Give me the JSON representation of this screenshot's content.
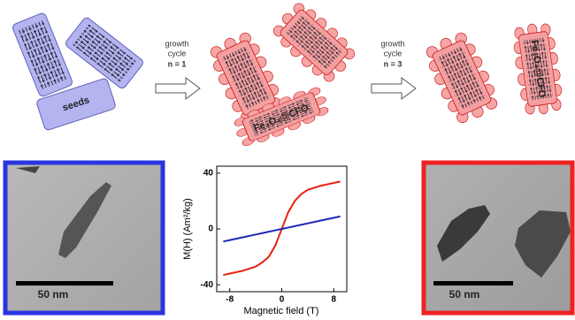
{
  "schematic": {
    "seeds_label": "seeds",
    "arrows": [
      {
        "lines": [
          "growth",
          "cycle",
          "n = 1"
        ]
      },
      {
        "lines": [
          "growth",
          "cycle",
          "n = 3"
        ]
      }
    ],
    "particle_labels": [
      "Fe₃O₄@CFO",
      "Fe₃O₄@CFO"
    ]
  },
  "images": [
    {
      "scale_bar": "50 nm",
      "frame_color": "#2a35e0"
    },
    {
      "scale_bar": "50 nm",
      "frame_color": "#ee2222"
    }
  ],
  "chart_data": {
    "type": "line",
    "xlabel": "Magnetic field (T)",
    "ylabel": "M(H) (Am²/kg)",
    "x": [
      -9,
      -8,
      -6,
      -4,
      -3,
      -2,
      -1,
      -0.5,
      0,
      0.5,
      1,
      2,
      3,
      4,
      6,
      8,
      9
    ],
    "series": [
      {
        "name": "Fe₃O₄@CFO",
        "color": "#e8200e",
        "values": [
          -33,
          -32,
          -30,
          -27,
          -24,
          -20,
          -12,
          -6,
          0,
          6,
          12,
          20,
          25,
          28,
          31,
          33,
          34
        ]
      },
      {
        "name": "seeds",
        "color": "#1e28b4",
        "values": [
          -9,
          -8,
          -6,
          -4,
          -3,
          -2,
          -1,
          -0.5,
          0,
          0.5,
          1,
          2,
          3,
          4,
          6,
          8,
          9
        ]
      }
    ],
    "xlim": [
      -10,
      10
    ],
    "ylim": [
      -45,
      45
    ],
    "xticks": [
      -8,
      0,
      8
    ],
    "yticks": [
      -40,
      0,
      40
    ],
    "grid": false
  }
}
